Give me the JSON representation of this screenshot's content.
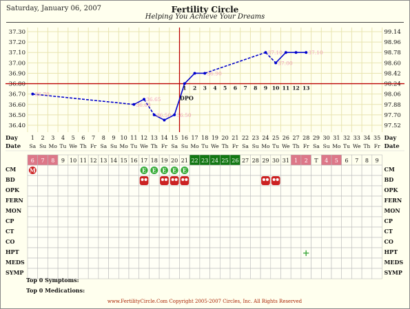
{
  "header": {
    "date": "Saturday, January 06, 2007",
    "title": "Fertility Circle",
    "subtitle": "Helping You Achieve Your Dreams"
  },
  "colors": {
    "background": "#FFFFEE",
    "grid": "#E8E4B0",
    "temp_line": "#0000CC",
    "coverline": "#BB0000",
    "ovulation_line": "#BB0000",
    "temp_label": "#F0A0B8",
    "period_cell": "#DD7788",
    "fertile_cell": "#117711",
    "footer_text": "#AA2200",
    "hpt_plus": "#44AA44"
  },
  "chart_data": {
    "type": "line",
    "title": "Fertility Circle",
    "x_range": [
      1,
      35
    ],
    "ylim": [
      36.4,
      37.3
    ],
    "y_ticks_c": [
      "37.30",
      "37.20",
      "37.10",
      "37.00",
      "36.90",
      "36.80",
      "36.70",
      "36.60",
      "36.50",
      "36.40"
    ],
    "y_ticks_f": [
      "99.14",
      "98.96",
      "98.78",
      "98.60",
      "98.42",
      "98.24",
      "98.06",
      "97.88",
      "97.70",
      "97.52"
    ],
    "coverline": 36.8,
    "ovulation_day": 15,
    "grid": true,
    "series": [
      {
        "points": [
          {
            "day": 1,
            "temp": 36.7,
            "label": "36.70"
          },
          {
            "day": 11,
            "temp": 36.6,
            "label": "36.60"
          },
          {
            "day": 12,
            "temp": 36.65,
            "label": "36.65"
          },
          {
            "day": 13,
            "temp": 36.5,
            "label": "36.50"
          },
          {
            "day": 14,
            "temp": 36.45,
            "label": ""
          },
          {
            "day": 15,
            "temp": 36.5,
            "label": "36.50"
          },
          {
            "day": 16,
            "temp": 36.8,
            "label": ""
          },
          {
            "day": 17,
            "temp": 36.9,
            "label": ""
          },
          {
            "day": 18,
            "temp": 36.9,
            "label": "36.90"
          },
          {
            "day": 24,
            "temp": 37.1,
            "label": "37.10"
          },
          {
            "day": 25,
            "temp": 37.0,
            "label": "37.00"
          },
          {
            "day": 26,
            "temp": 37.1,
            "label": ""
          },
          {
            "day": 27,
            "temp": 37.1,
            "label": ""
          },
          {
            "day": 28,
            "temp": 37.1,
            "label": "37.10"
          }
        ]
      }
    ],
    "dashed_segments_after_day": [
      1,
      12,
      18,
      24
    ],
    "dpo_label": "DPO",
    "dpo": [
      {
        "day": 16,
        "n": "1"
      },
      {
        "day": 17,
        "n": "2"
      },
      {
        "day": 18,
        "n": "3"
      },
      {
        "day": 19,
        "n": "4"
      },
      {
        "day": 20,
        "n": "5"
      },
      {
        "day": 21,
        "n": "6"
      },
      {
        "day": 22,
        "n": "7"
      },
      {
        "day": 23,
        "n": "8"
      },
      {
        "day": 24,
        "n": "9"
      },
      {
        "day": 25,
        "n": "10"
      },
      {
        "day": 26,
        "n": "11"
      },
      {
        "day": 27,
        "n": "12"
      },
      {
        "day": 28,
        "n": "13"
      }
    ],
    "day_numbers": [
      "1",
      "2",
      "3",
      "4",
      "5",
      "6",
      "7",
      "8",
      "9",
      "10",
      "11",
      "12",
      "13",
      "14",
      "15",
      "16",
      "17",
      "18",
      "19",
      "20",
      "21",
      "22",
      "23",
      "24",
      "25",
      "26",
      "27",
      "28",
      "29",
      "30",
      "31",
      "32",
      "33",
      "34",
      "35"
    ],
    "weekdays": [
      "Sa",
      "Su",
      "Mo",
      "Tu",
      "We",
      "Th",
      "Fr",
      "Sa",
      "Su",
      "Mo",
      "Tu",
      "We",
      "Th",
      "Fr",
      "Sa",
      "Su",
      "Mo",
      "Tu",
      "We",
      "Th",
      "Fr",
      "Sa",
      "Su",
      "Mo",
      "Tu",
      "We",
      "Th",
      "Fr",
      "Sa",
      "Su",
      "Mo",
      "Tu",
      "We",
      "Th",
      "Fr"
    ],
    "dates": [
      "6",
      "7",
      "8",
      "9",
      "10",
      "11",
      "12",
      "13",
      "14",
      "15",
      "16",
      "17",
      "18",
      "19",
      "20",
      "21",
      "22",
      "23",
      "24",
      "25",
      "26",
      "27",
      "28",
      "29",
      "30",
      "31",
      "1",
      "2",
      "T",
      "4",
      "5",
      "6",
      "7",
      "8",
      "9"
    ],
    "period_days": [
      1,
      2,
      3,
      27,
      28,
      30,
      31
    ],
    "fertile_days": [
      17,
      18,
      19,
      20,
      21
    ],
    "row_labels": {
      "day": "Day",
      "date": "Date"
    },
    "observation_rows": [
      "CM",
      "BD",
      "OPK",
      "FERN",
      "MON",
      "CP",
      "CT",
      "CO",
      "HPT",
      "MEDS",
      "SYMP"
    ],
    "cm_marks": [
      {
        "day": 1,
        "code": "M"
      },
      {
        "day": 12,
        "code": "E"
      },
      {
        "day": 13,
        "code": "E"
      },
      {
        "day": 14,
        "code": "E"
      },
      {
        "day": 15,
        "code": "E"
      },
      {
        "day": 16,
        "code": "E"
      }
    ],
    "bd_days": [
      12,
      14,
      15,
      16,
      24,
      25
    ],
    "hpt_marks": [
      {
        "day": 28,
        "symbol": "+"
      }
    ]
  },
  "summary": {
    "symptoms_label": "Top 0 Symptoms:",
    "medications_label": "Top 0 Medications:"
  },
  "footer": {
    "text": "www.FertilityCircle.Com Copyright 2005-2007 Circles, Inc. All Rights Reserved"
  }
}
